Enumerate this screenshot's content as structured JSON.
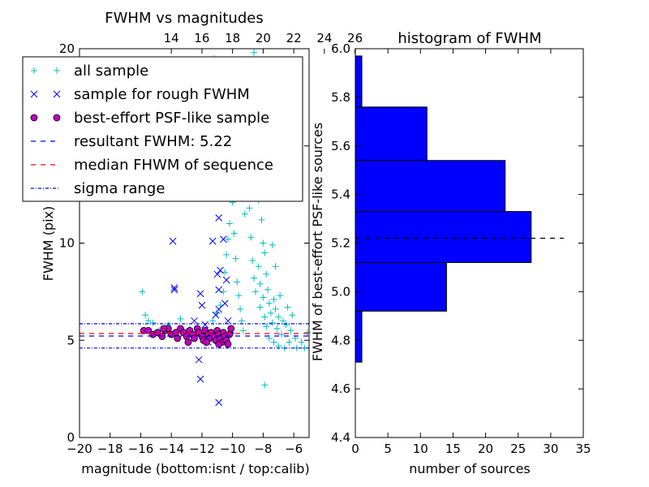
{
  "chart_data": [
    {
      "type": "scatter",
      "title": "FWHM vs magnitudes",
      "xlabel": "magnitude (bottom:isnt / top:calib)",
      "ylabel": "FWHM (pix)",
      "xlim": [
        -20,
        -5
      ],
      "ylim": [
        0,
        20
      ],
      "x_ticks": [
        -20,
        -18,
        -16,
        -14,
        -12,
        -10,
        -8,
        -6
      ],
      "x_tick_labels": [
        "−20",
        "−18",
        "−16",
        "−14",
        "−12",
        "−10",
        "−8",
        "−6"
      ],
      "y_ticks": [
        0,
        5,
        10,
        15,
        20
      ],
      "top_axis_ticks": [
        14,
        16,
        18,
        20,
        22,
        24,
        26
      ],
      "top_axis_offset": 28,
      "legend": {
        "placement": "top-left",
        "entries": [
          {
            "label": "all sample",
            "marker": "+",
            "color": "#00BFBF"
          },
          {
            "label": "sample for rough FWHM",
            "marker": "x",
            "color": "#0000FF"
          },
          {
            "label": "best-effort PSF-like sample",
            "marker": "o",
            "color": "#BF00BF"
          },
          {
            "label": "resultant FWHM: 5.22",
            "marker": "dashed",
            "color": "#0000FF"
          },
          {
            "label": "median FHWM of sequence",
            "marker": "dashed",
            "color": "#FF0000"
          },
          {
            "label": "sigma range",
            "marker": "dashdot",
            "color": "#0000FF"
          }
        ]
      },
      "horizontal_lines": [
        {
          "name": "resultant FWHM",
          "y": 5.22,
          "style": "dashed",
          "color": "#0000FF"
        },
        {
          "name": "median FHWM of sequence",
          "y": 5.35,
          "style": "dashed",
          "color": "#FF0000"
        },
        {
          "name": "sigma upper",
          "y": 5.85,
          "style": "dashdot",
          "color": "#0000FF"
        },
        {
          "name": "sigma lower",
          "y": 4.6,
          "style": "dashdot",
          "color": "#0000FF"
        }
      ],
      "series": [
        {
          "name": "all sample",
          "marker": "+",
          "color": "#00BFBF",
          "points": [
            [
              -15.9,
              7.5
            ],
            [
              -15.7,
              6.3
            ],
            [
              -15.5,
              6.0
            ],
            [
              -15.2,
              5.9
            ],
            [
              -14.8,
              5.5
            ],
            [
              -14.2,
              5.8
            ],
            [
              -13.9,
              5.3
            ],
            [
              -13.4,
              6.1
            ],
            [
              -12.8,
              5.6
            ],
            [
              -12.3,
              5.7
            ],
            [
              -11.8,
              5.4
            ],
            [
              -11.3,
              6.0
            ],
            [
              -11.0,
              6.4
            ],
            [
              -10.8,
              6.8
            ],
            [
              -10.6,
              7.5
            ],
            [
              -10.5,
              8.5
            ],
            [
              -10.4,
              9.4
            ],
            [
              -10.3,
              10.2
            ],
            [
              -10.2,
              11.0
            ],
            [
              -10.0,
              12.1
            ],
            [
              -9.9,
              10.5
            ],
            [
              -9.8,
              9.2
            ],
            [
              -9.7,
              8.0
            ],
            [
              -9.6,
              7.3
            ],
            [
              -9.5,
              6.6
            ],
            [
              -9.4,
              6.0
            ],
            [
              -9.3,
              5.5
            ],
            [
              -9.2,
              11.5
            ],
            [
              -9.1,
              12.4
            ],
            [
              -9.0,
              13.2
            ],
            [
              -8.9,
              11.8
            ],
            [
              -8.8,
              10.3
            ],
            [
              -8.7,
              9.1
            ],
            [
              -8.6,
              8.2
            ],
            [
              -8.5,
              7.5
            ],
            [
              -8.5,
              14.2
            ],
            [
              -8.4,
              13.0
            ],
            [
              -8.3,
              12.2
            ],
            [
              -8.3,
              8.8
            ],
            [
              -8.2,
              7.9
            ],
            [
              -8.2,
              6.7
            ],
            [
              -8.1,
              15.4
            ],
            [
              -8.1,
              11.2
            ],
            [
              -8.0,
              10.0
            ],
            [
              -8.0,
              7.2
            ],
            [
              -7.9,
              9.5
            ],
            [
              -7.9,
              6.2
            ],
            [
              -7.8,
              8.4
            ],
            [
              -7.8,
              5.7
            ],
            [
              -7.7,
              7.6
            ],
            [
              -7.7,
              13.6
            ],
            [
              -7.6,
              6.9
            ],
            [
              -7.6,
              5.1
            ],
            [
              -7.5,
              6.4
            ],
            [
              -7.5,
              12.6
            ],
            [
              -7.4,
              5.9
            ],
            [
              -7.4,
              9.9
            ],
            [
              -7.3,
              7.1
            ],
            [
              -7.3,
              4.9
            ],
            [
              -7.2,
              6.6
            ],
            [
              -7.2,
              8.8
            ],
            [
              -7.1,
              5.6
            ],
            [
              -7.0,
              6.2
            ],
            [
              -7.0,
              4.7
            ],
            [
              -6.9,
              7.3
            ],
            [
              -6.8,
              5.3
            ],
            [
              -6.7,
              6.0
            ],
            [
              -6.6,
              4.6
            ],
            [
              -6.5,
              5.8
            ],
            [
              -6.4,
              6.7
            ],
            [
              -6.3,
              4.9
            ],
            [
              -6.2,
              5.5
            ],
            [
              -6.1,
              6.3
            ],
            [
              -5.9,
              5.1
            ],
            [
              -5.8,
              4.6
            ],
            [
              -5.5,
              4.9
            ],
            [
              -5.3,
              4.6
            ],
            [
              -5.1,
              5.4
            ],
            [
              -7.9,
              2.7
            ],
            [
              -11.2,
              19.5
            ],
            [
              -8.6,
              19.8
            ],
            [
              -8.2,
              18.4
            ],
            [
              -9.3,
              16.6
            ],
            [
              -8.8,
              16.0
            ],
            [
              -10.7,
              16.9
            ],
            [
              -8.0,
              15.9
            ],
            [
              -9.0,
              15.2
            ],
            [
              -8.3,
              14.8
            ],
            [
              -7.9,
              14.0
            ],
            [
              -8.6,
              13.5
            ]
          ]
        },
        {
          "name": "sample for rough FWHM",
          "marker": "x",
          "color": "#0000FF",
          "points": [
            [
              -13.9,
              10.1
            ],
            [
              -13.8,
              7.6
            ],
            [
              -13.8,
              7.7
            ],
            [
              -12.1,
              7.4
            ],
            [
              -12.0,
              6.8
            ],
            [
              -12.2,
              4.0
            ],
            [
              -12.1,
              3.0
            ],
            [
              -10.9,
              1.8
            ],
            [
              -11.3,
              10.1
            ],
            [
              -10.8,
              8.6
            ],
            [
              -11.0,
              8.4
            ],
            [
              -10.9,
              7.6
            ],
            [
              -12.5,
              6.0
            ],
            [
              -11.8,
              5.8
            ],
            [
              -10.9,
              6.6
            ],
            [
              -10.5,
              6.9
            ],
            [
              -10.3,
              6.0
            ],
            [
              -10.1,
              5.5
            ],
            [
              -10.4,
              8.1
            ],
            [
              -11.1,
              6.3
            ],
            [
              -10.9,
              11.3
            ],
            [
              -10.6,
              10.2
            ],
            [
              -12.5,
              5.3
            ],
            [
              -11.6,
              4.9
            ]
          ]
        },
        {
          "name": "best-effort PSF-like sample",
          "marker": "o",
          "color": "#BF00BF",
          "points": [
            [
              -15.8,
              5.5
            ],
            [
              -15.5,
              5.5
            ],
            [
              -15.2,
              5.3
            ],
            [
              -14.9,
              5.4
            ],
            [
              -14.6,
              5.2
            ],
            [
              -14.4,
              5.5
            ],
            [
              -14.2,
              5.6
            ],
            [
              -14.0,
              5.3
            ],
            [
              -13.7,
              5.4
            ],
            [
              -13.6,
              5.1
            ],
            [
              -13.4,
              5.6
            ],
            [
              -13.2,
              5.4
            ],
            [
              -13.0,
              5.2
            ],
            [
              -12.8,
              5.5
            ],
            [
              -12.6,
              5.3
            ],
            [
              -12.5,
              5.1
            ],
            [
              -12.3,
              5.6
            ],
            [
              -12.2,
              5.4
            ],
            [
              -12.0,
              5.2
            ],
            [
              -11.9,
              5.0
            ],
            [
              -11.8,
              5.5
            ],
            [
              -11.6,
              5.3
            ],
            [
              -11.5,
              5.1
            ],
            [
              -11.4,
              5.4
            ],
            [
              -11.2,
              5.2
            ],
            [
              -11.1,
              5.0
            ],
            [
              -11.0,
              5.5
            ],
            [
              -10.9,
              5.3
            ],
            [
              -10.8,
              5.1
            ],
            [
              -10.7,
              4.9
            ],
            [
              -10.6,
              5.4
            ],
            [
              -10.5,
              5.2
            ],
            [
              -10.4,
              5.0
            ],
            [
              -10.3,
              4.8
            ],
            [
              -10.2,
              5.3
            ],
            [
              -10.1,
              5.6
            ],
            [
              -12.9,
              4.9
            ],
            [
              -14.5,
              5.6
            ],
            [
              -11.7,
              4.9
            ],
            [
              -10.9,
              4.8
            ]
          ]
        }
      ]
    },
    {
      "type": "bar",
      "orientation": "horizontal",
      "title": "histogram of FWHM",
      "xlabel": "number of sources",
      "ylabel": "FWHM of best-effort PSF-like sources",
      "xlim": [
        0,
        35
      ],
      "ylim": [
        4.4,
        6.0
      ],
      "x_ticks": [
        0,
        5,
        10,
        15,
        20,
        25,
        30,
        35
      ],
      "y_ticks": [
        4.4,
        4.6,
        4.8,
        5.0,
        5.2,
        5.4,
        5.6,
        5.8,
        6.0
      ],
      "color": "#0000FF",
      "bins": [
        {
          "low": 4.71,
          "high": 4.92,
          "count": 1
        },
        {
          "low": 4.92,
          "high": 5.12,
          "count": 14
        },
        {
          "low": 5.12,
          "high": 5.33,
          "count": 27
        },
        {
          "low": 5.33,
          "high": 5.54,
          "count": 23
        },
        {
          "low": 5.54,
          "high": 5.76,
          "count": 11
        },
        {
          "low": 5.76,
          "high": 5.97,
          "count": 1
        }
      ],
      "reference_line": {
        "y": 5.22,
        "x_range": [
          0,
          32
        ],
        "style": "dashed",
        "color": "#000000"
      }
    }
  ]
}
